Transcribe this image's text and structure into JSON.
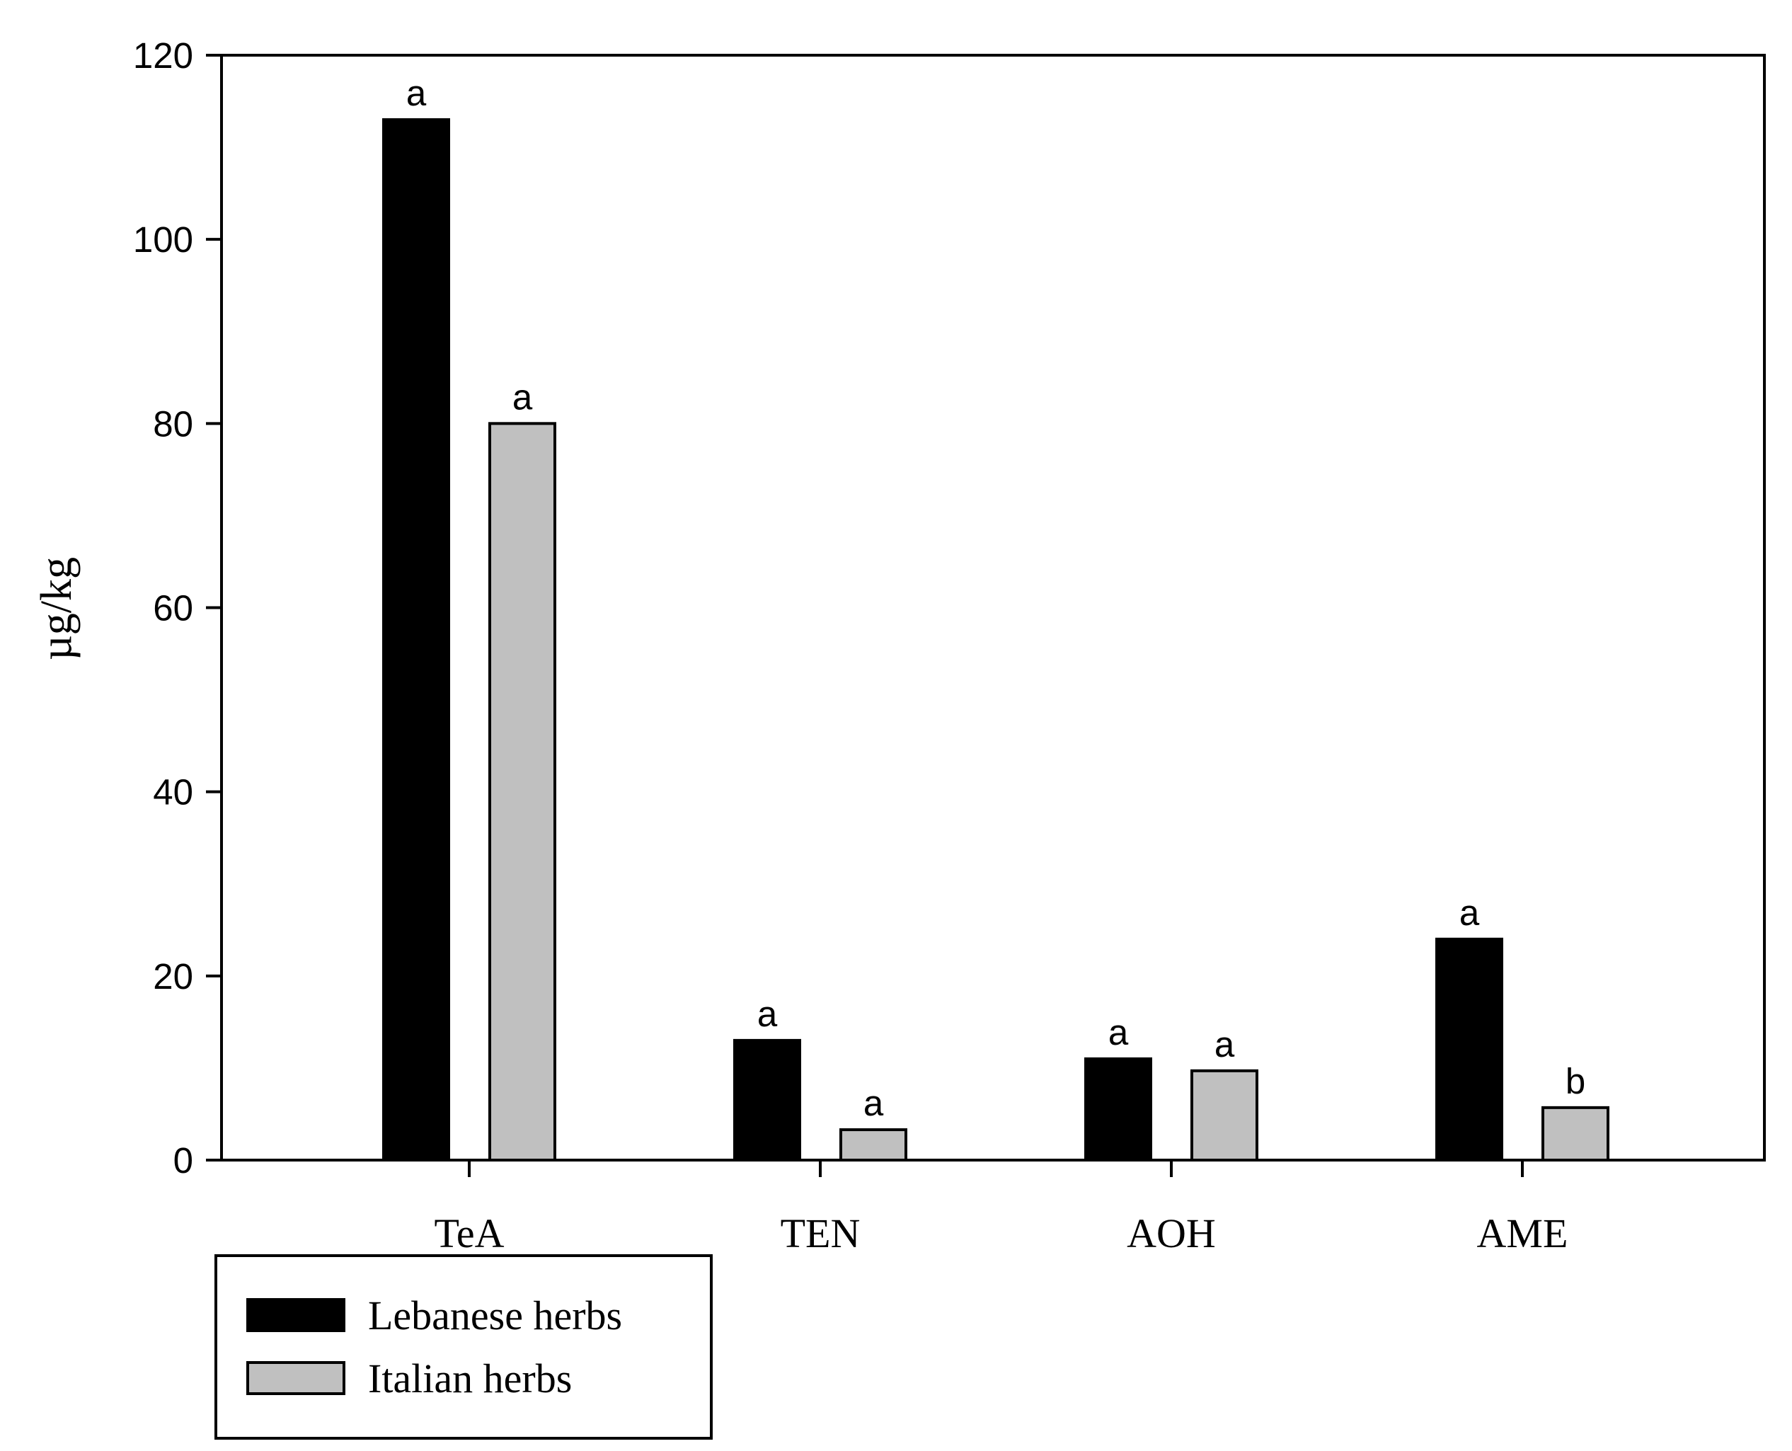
{
  "chart_data": {
    "type": "bar",
    "title": "",
    "xlabel": "",
    "ylabel": "µg/kg",
    "ylim": [
      0,
      120
    ],
    "yticks": [
      0,
      20,
      40,
      60,
      80,
      100,
      120
    ],
    "grid": false,
    "categories": [
      "TeA",
      "TEN",
      "AOH",
      "AME"
    ],
    "series": [
      {
        "name": "Lebanese herbs",
        "color": "#000000",
        "values": [
          113,
          13,
          11,
          24
        ],
        "labels": [
          "a",
          "a",
          "a",
          "a"
        ]
      },
      {
        "name": "Italian herbs",
        "color": "#c0c0c0",
        "values": [
          80,
          3.3,
          9.7,
          5.7
        ],
        "labels": [
          "a",
          "a",
          "a",
          "b"
        ]
      }
    ],
    "legend": {
      "position": "bottom-left",
      "entries": [
        "Lebanese herbs",
        "Italian herbs"
      ]
    }
  }
}
